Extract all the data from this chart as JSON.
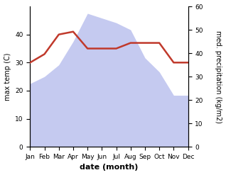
{
  "months": [
    "Jan",
    "Feb",
    "Mar",
    "Apr",
    "May",
    "Jun",
    "Jul",
    "Aug",
    "Sep",
    "Oct",
    "Nov",
    "Dec"
  ],
  "max_temp": [
    30,
    33,
    40,
    41,
    35,
    35,
    35,
    37,
    37,
    37,
    30,
    30
  ],
  "precipitation": [
    27,
    30,
    35,
    45,
    57,
    55,
    53,
    50,
    38,
    32,
    22,
    22
  ],
  "temp_color": "#c0392b",
  "precip_fill_color": "#c5caf0",
  "left_ylabel": "max temp (C)",
  "right_ylabel": "med. precipitation (kg/m2)",
  "xlabel": "date (month)",
  "temp_ylim": [
    0,
    50
  ],
  "precip_ylim": [
    0,
    60
  ],
  "temp_yticks": [
    0,
    10,
    20,
    30,
    40
  ],
  "precip_yticks": [
    0,
    10,
    20,
    30,
    40,
    50,
    60
  ],
  "bg_color": "#ffffff",
  "label_fontsize": 7,
  "tick_fontsize": 6.5,
  "xlabel_fontsize": 8
}
